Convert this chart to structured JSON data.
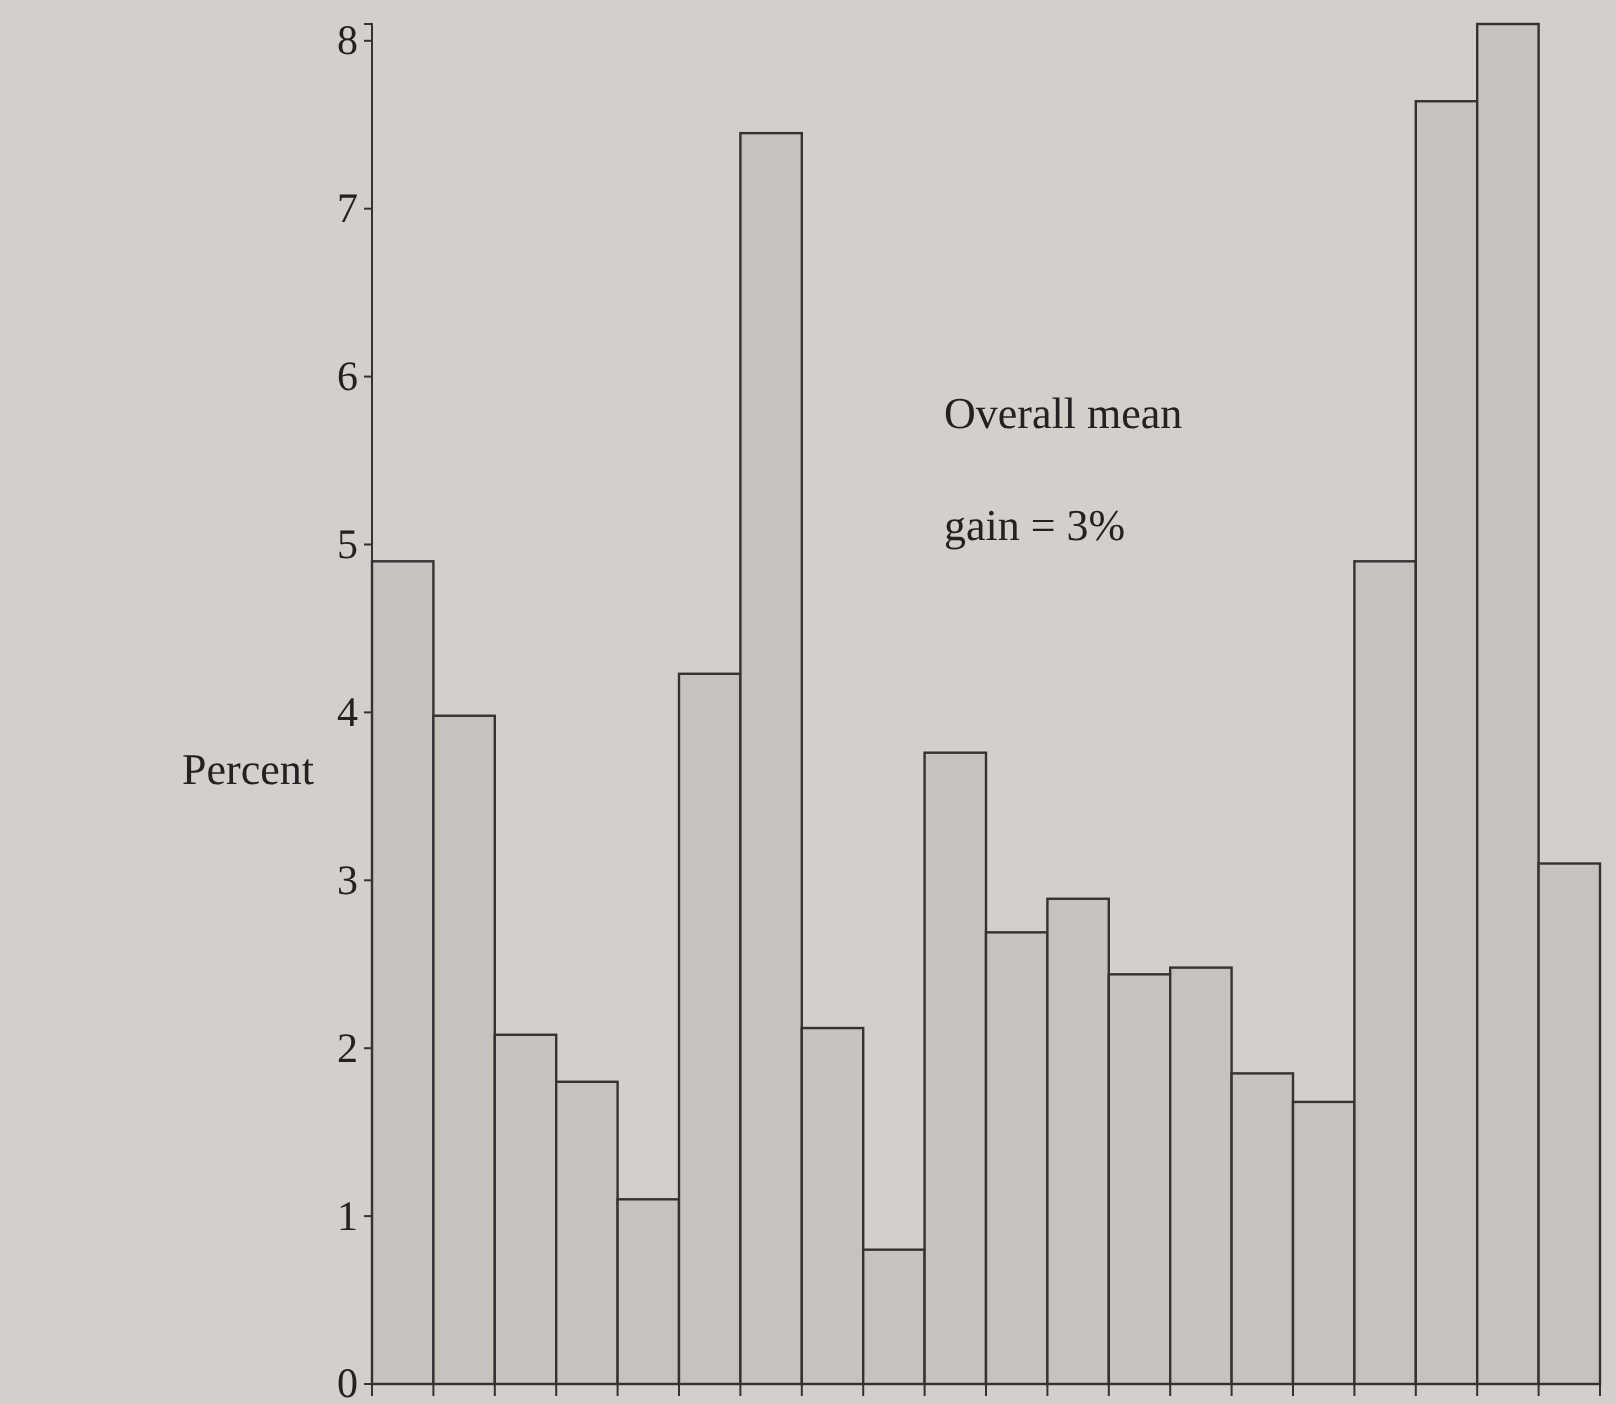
{
  "chart_data": {
    "type": "bar",
    "ylabel": "Percent",
    "annotations": [
      "Overall mean\ngain = 3%"
    ],
    "categories": [
      null,
      null,
      null,
      null,
      null,
      null,
      null,
      null,
      null,
      null,
      null,
      null,
      null,
      null,
      null,
      null,
      null,
      null,
      null,
      null
    ],
    "values": [
      4.9,
      3.98,
      2.08,
      1.8,
      1.1,
      4.23,
      7.45,
      2.12,
      0.8,
      3.76,
      2.69,
      2.89,
      2.44,
      2.48,
      1.85,
      1.68,
      4.9,
      7.64,
      8.1,
      3.1
    ],
    "color": "#c6c2bd",
    "ylim": [
      0,
      8.1
    ],
    "yticks": [
      0,
      1,
      2,
      3,
      4,
      5,
      6,
      7,
      8
    ],
    "grid": false,
    "tick_labels": "y"
  }
}
